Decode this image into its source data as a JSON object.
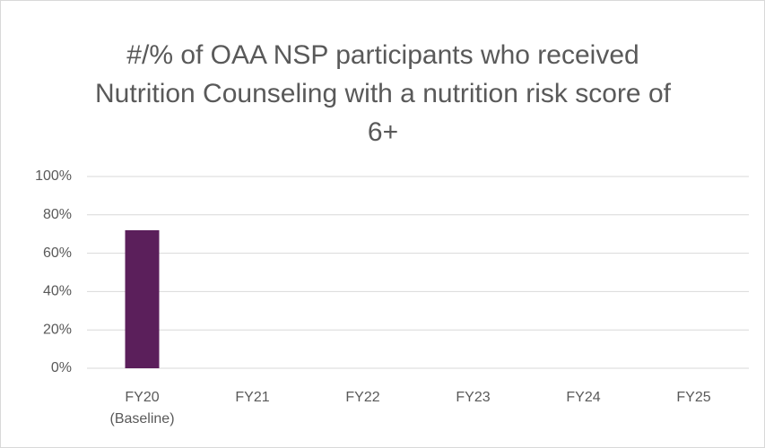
{
  "chart_data": {
    "type": "bar",
    "title": "#/% of OAA NSP participants who received Nutrition Counseling with a nutrition risk score of 6+",
    "categories": [
      "FY20 (Baseline)",
      "FY21",
      "FY22",
      "FY23",
      "FY24",
      "FY25"
    ],
    "values": [
      72,
      null,
      null,
      null,
      null,
      null
    ],
    "color": "#5b1f5b",
    "ylim": [
      0,
      100
    ],
    "yticks": [
      {
        "value": 0,
        "label": "0%"
      },
      {
        "value": 20,
        "label": "20%"
      },
      {
        "value": 40,
        "label": "40%"
      },
      {
        "value": 60,
        "label": "60%"
      },
      {
        "value": 80,
        "label": "80%"
      },
      {
        "value": 100,
        "label": "100%"
      }
    ],
    "grid": true
  }
}
